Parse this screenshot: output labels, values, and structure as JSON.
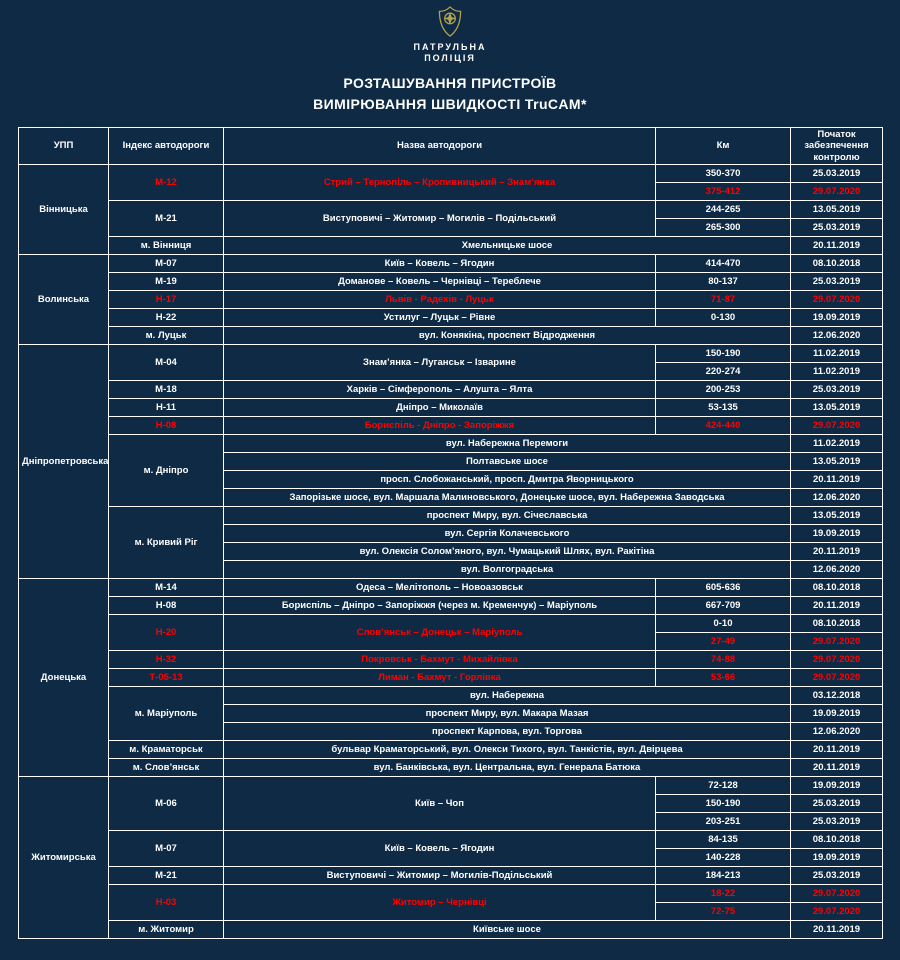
{
  "colors": {
    "background": "#0e2a45",
    "text": "#ffffff",
    "alert_red": "#ff0000",
    "grid": "#ffffff",
    "badge_gold": "#b9a44c"
  },
  "header": {
    "org_line1": "ПАТРУЛЬНА",
    "org_line2": "ПОЛІЦІЯ",
    "title_line1": "РОЗТАШУВАННЯ ПРИСТРОЇВ",
    "title_line2": "ВИМІРЮВАННЯ ШВИДКОСТІ TruCAM*",
    "badge_icon": "patrol-police-badge"
  },
  "table": {
    "headers": [
      "УПП",
      "Індекс автодороги",
      "Назва автодороги",
      "Км",
      "Початок забезпечення контролю"
    ],
    "groups": [
      {
        "region": "Вінницька",
        "roads": [
          {
            "index": "М-12",
            "index_red": true,
            "name": "Стрий – Тернопіль – Кропивницький – Знам’янка",
            "name_red": true,
            "segments": [
              {
                "km": "350-370",
                "date": "25.03.2019"
              },
              {
                "km": "375-412",
                "date": "29.07.2020",
                "red": true
              }
            ]
          },
          {
            "index": "М-21",
            "name": "Виступовичі – Житомир – Могилів – Подільський",
            "segments": [
              {
                "km": "244-265",
                "date": "13.05.2019"
              },
              {
                "km": "265-300",
                "date": "25.03.2019"
              }
            ]
          },
          {
            "index": "м. Вінниця",
            "streets": [
              {
                "name": "Хмельницьке шосе",
                "date": "20.11.2019"
              }
            ]
          }
        ]
      },
      {
        "region": "Волинська",
        "roads": [
          {
            "index": "М-07",
            "name": "Київ – Ковель – Ягодин",
            "segments": [
              {
                "km": "414-470",
                "date": "08.10.2018"
              }
            ]
          },
          {
            "index": "М-19",
            "name": "Доманове – Ковель – Чернівці – Тереблече",
            "segments": [
              {
                "km": "80-137",
                "date": "25.03.2019"
              }
            ]
          },
          {
            "index": "Н-17",
            "index_red": true,
            "name": "Львів - Радехів - Луцьк",
            "name_red": true,
            "segments": [
              {
                "km": "71-87",
                "date": "29.07.2020",
                "red": true
              }
            ]
          },
          {
            "index": "Н-22",
            "name": "Устилуг – Луцьк – Рівне",
            "segments": [
              {
                "km": "0-130",
                "date": "19.09.2019"
              }
            ]
          },
          {
            "index": "м. Луцьк",
            "streets": [
              {
                "name": "вул. Конякіна, проспект Відродження",
                "date": "12.06.2020"
              }
            ]
          }
        ]
      },
      {
        "region": "Дніпропетровська",
        "roads": [
          {
            "index": "М-04",
            "name": "Знам’янка – Луганськ – Ізварине",
            "segments": [
              {
                "km": "150-190",
                "date": "11.02.2019"
              },
              {
                "km": "220-274",
                "date": "11.02.2019"
              }
            ]
          },
          {
            "index": "М-18",
            "name": "Харків – Сімферополь – Алушта – Ялта",
            "segments": [
              {
                "km": "200-253",
                "date": "25.03.2019"
              }
            ]
          },
          {
            "index": "Н-11",
            "name": "Дніпро – Миколаїв",
            "segments": [
              {
                "km": "53-135",
                "date": "13.05.2019"
              }
            ]
          },
          {
            "index": "Н-08",
            "index_red": true,
            "name": "Бориспіль - Дніпро - Запоріжжя",
            "name_red": true,
            "segments": [
              {
                "km": "424-440",
                "date": "29.07.2020",
                "red": true
              }
            ]
          },
          {
            "index": "м. Дніпро",
            "streets": [
              {
                "name": "вул. Набережна Перемоги",
                "date": "11.02.2019"
              },
              {
                "name": "Полтавське шосе",
                "date": "13.05.2019"
              },
              {
                "name": "просп. Слобожанський, просп. Дмитра Яворницького",
                "date": "20.11.2019"
              },
              {
                "name": "Запорізьке шосе, вул. Маршала Малиновського,  Донецьке шосе, вул. Набережна Заводська",
                "date": "12.06.2020"
              }
            ]
          },
          {
            "index": "м. Кривий Ріг",
            "streets": [
              {
                "name": "проспект Миру, вул. Січеславська",
                "date": "13.05.2019"
              },
              {
                "name": "вул. Сергія Колачевського",
                "date": "19.09.2019"
              },
              {
                "name": "вул. Олексія Солом’яного, вул. Чумацький Шлях, вул. Ракітіна",
                "date": "20.11.2019"
              },
              {
                "name": "вул. Волгоградська",
                "date": "12.06.2020"
              }
            ]
          }
        ]
      },
      {
        "region": "Донецька",
        "roads": [
          {
            "index": "М-14",
            "name": "Одеса – Мелітополь – Новоазовськ",
            "segments": [
              {
                "km": "605-636",
                "date": "08.10.2018"
              }
            ]
          },
          {
            "index": "Н-08",
            "name": "Бориспіль – Дніпро – Запоріжжя (через м. Кременчук) – Маріуполь",
            "segments": [
              {
                "km": "667-709",
                "date": "20.11.2019"
              }
            ]
          },
          {
            "index": "Н-20",
            "index_red": true,
            "name": "Слов’янськ – Донецьк – Маріуполь",
            "name_red": true,
            "segments": [
              {
                "km": "0-10",
                "date": "08.10.2018"
              },
              {
                "km": "27-49",
                "date": "29.07.2020",
                "red": true
              }
            ]
          },
          {
            "index": "Н-32",
            "index_red": true,
            "name": "Покровськ - Бахмут - Михайлівка",
            "name_red": true,
            "segments": [
              {
                "km": "74-88",
                "date": "29.07.2020",
                "red": true
              }
            ]
          },
          {
            "index": "Т-05-13",
            "index_red": true,
            "name": "Лиман - Бахмут - Горлівка",
            "name_red": true,
            "segments": [
              {
                "km": "53-66",
                "date": "29.07.2020",
                "red": true
              }
            ]
          },
          {
            "index": "м. Маріуполь",
            "streets": [
              {
                "name": "вул. Набережна",
                "date": "03.12.2018"
              },
              {
                "name": "проспект Миру, вул. Макара Мазая",
                "date": "19.09.2019"
              },
              {
                "name": "проспект Карпова, вул. Торгова",
                "date": "12.06.2020"
              }
            ]
          },
          {
            "index": "м. Краматорськ",
            "streets": [
              {
                "name": "бульвар Краматорський, вул. Олекси Тихого, вул. Танкістів, вул. Двірцева",
                "date": "20.11.2019"
              }
            ]
          },
          {
            "index": "м. Слов’янськ",
            "streets": [
              {
                "name": "вул. Банківська, вул. Центральна, вул. Генерала Батюка",
                "date": "20.11.2019"
              }
            ]
          }
        ]
      },
      {
        "region": "Житомирська",
        "roads": [
          {
            "index": "М-06",
            "name": "Київ – Чоп",
            "segments": [
              {
                "km": "72-128",
                "date": "19.09.2019"
              },
              {
                "km": "150-190",
                "date": "25.03.2019"
              },
              {
                "km": "203-251",
                "date": "25.03.2019"
              }
            ]
          },
          {
            "index": "М-07",
            "name": "Київ – Ковель – Ягодин",
            "segments": [
              {
                "km": "84-135",
                "date": "08.10.2018"
              },
              {
                "km": "140-228",
                "date": "19.09.2019"
              }
            ]
          },
          {
            "index": "М-21",
            "name": "Виступовичі – Житомир – Могилів-Подільський",
            "segments": [
              {
                "km": "184-213",
                "date": "25.03.2019"
              }
            ]
          },
          {
            "index": "Н-03",
            "index_red": true,
            "name": "Житомир – Чернівці",
            "name_red": true,
            "segments": [
              {
                "km": "18-22",
                "date": "29.07.2020",
                "red": true
              },
              {
                "km": "72-75",
                "date": "29.07.2020",
                "red": true
              }
            ]
          },
          {
            "index": "м. Житомир",
            "streets": [
              {
                "name": "Київське шосе",
                "date": "20.11.2019"
              }
            ]
          }
        ]
      }
    ]
  }
}
